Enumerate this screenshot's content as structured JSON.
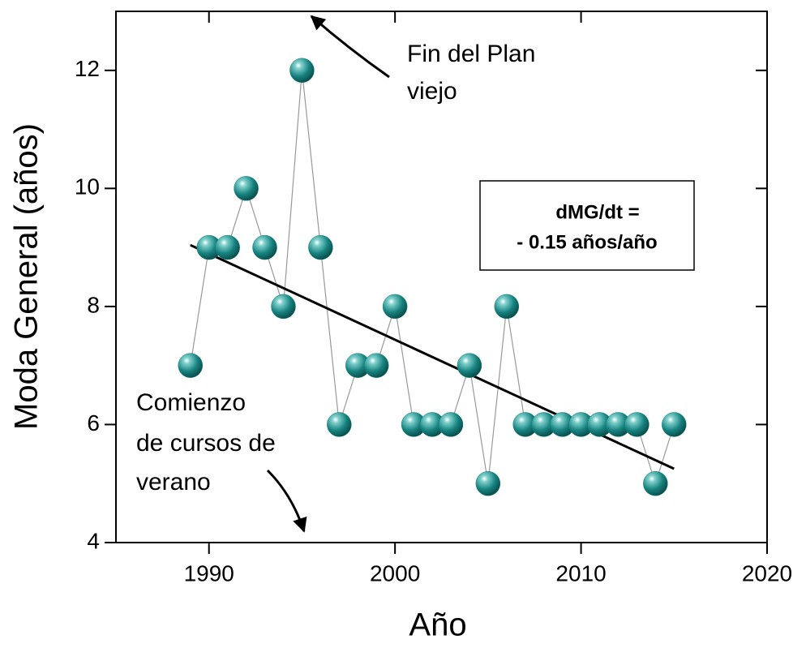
{
  "chart_data": {
    "type": "line",
    "x_label": "Año",
    "y_label": "Moda General (años)",
    "x": [
      1989,
      1990,
      1991,
      1992,
      1993,
      1994,
      1995,
      1996,
      1997,
      1998,
      1999,
      2000,
      2001,
      2002,
      2003,
      2004,
      2005,
      2006,
      2007,
      2008,
      2009,
      2010,
      2011,
      2012,
      2013,
      2014,
      2015
    ],
    "series": [
      {
        "color": "#16827f",
        "values": [
          7,
          9,
          9,
          10,
          9,
          8,
          12,
          9,
          6,
          7,
          7,
          8,
          6,
          6,
          6,
          7,
          5,
          8,
          6,
          6,
          6,
          6,
          6,
          6,
          6,
          5,
          6
        ]
      }
    ],
    "trendline": {
      "x": [
        1989,
        2015
      ],
      "values": [
        9.04,
        5.25
      ],
      "color": "#000000"
    },
    "xlim": [
      1985,
      2020
    ],
    "xticks": [
      1990,
      2000,
      2010,
      2020
    ],
    "ylim": [
      4,
      13
    ],
    "yticks": [
      4,
      6,
      8,
      10,
      12
    ],
    "annotations": [
      {
        "lines": [
          "Fin del Plan",
          "viejo"
        ]
      },
      {
        "lines": [
          "Comienzo",
          "de cursos de",
          "verano"
        ]
      },
      {
        "lines": [
          "dMG/dt =",
          "- 0.15 años/año"
        ]
      }
    ]
  }
}
